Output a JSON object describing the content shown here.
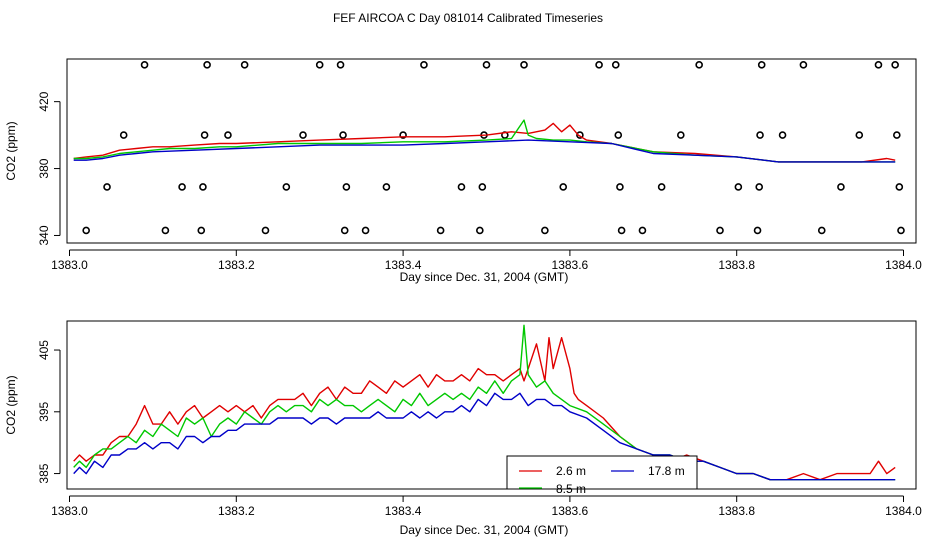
{
  "title": "FEF AIRCOA C  Day 081014  Calibrated Timeseries",
  "colors": {
    "red": "#e00000",
    "green": "#00c800",
    "blue": "#0000c8",
    "axis": "#000000"
  },
  "chart_data": [
    {
      "type": "line",
      "xlabel": "Day since Dec. 31, 2004 (GMT)",
      "ylabel": "CO2 (ppm)",
      "xlim": [
        1382.997,
        1384.015
      ],
      "ylim": [
        335.5,
        445.5
      ],
      "x_ticks": [
        "1383.0",
        "1383.2",
        "1383.4",
        "1383.6",
        "1383.8",
        "1384.0"
      ],
      "y_ticks": [
        "340",
        "380",
        "420"
      ],
      "y_tick_values": [
        340,
        380,
        420
      ],
      "x_tick_values": [
        1383.0,
        1383.2,
        1383.4,
        1383.6,
        1383.8,
        1384.0
      ],
      "series": [
        {
          "name": "2.6 m",
          "color": "red",
          "x": [
            1383.005,
            1383.02,
            1383.04,
            1383.06,
            1383.08,
            1383.1,
            1383.12,
            1383.15,
            1383.18,
            1383.2,
            1383.25,
            1383.3,
            1383.35,
            1383.4,
            1383.45,
            1383.5,
            1383.53,
            1383.55,
            1383.57,
            1383.58,
            1383.59,
            1383.6,
            1383.61,
            1383.62,
            1383.65,
            1383.7,
            1383.75,
            1383.8,
            1383.85,
            1383.9,
            1383.95,
            1383.98,
            1383.99
          ],
          "y": [
            386,
            387,
            388,
            391,
            392,
            393,
            393,
            394,
            395,
            395,
            396,
            397,
            398,
            399,
            399,
            400,
            402,
            401,
            403,
            407,
            402,
            406,
            400,
            397,
            395,
            390,
            389,
            387,
            384,
            384,
            384,
            386,
            385
          ]
        },
        {
          "name": "8.5 m",
          "color": "green",
          "x": [
            1383.005,
            1383.02,
            1383.04,
            1383.06,
            1383.08,
            1383.1,
            1383.12,
            1383.15,
            1383.18,
            1383.2,
            1383.25,
            1383.3,
            1383.35,
            1383.4,
            1383.45,
            1383.5,
            1383.53,
            1383.545,
            1383.55,
            1383.56,
            1383.58,
            1383.6,
            1383.62,
            1383.65,
            1383.7,
            1383.75,
            1383.8,
            1383.85,
            1383.9,
            1383.95,
            1383.99
          ],
          "y": [
            386,
            386,
            387,
            389,
            390,
            391,
            392,
            392,
            393,
            393,
            395,
            395,
            395,
            396,
            396,
            397,
            398,
            409,
            400,
            398,
            397,
            397,
            396,
            395,
            390,
            388,
            387,
            384,
            384,
            384,
            384
          ]
        },
        {
          "name": "17.8 m",
          "color": "blue",
          "x": [
            1383.005,
            1383.02,
            1383.04,
            1383.06,
            1383.08,
            1383.1,
            1383.15,
            1383.2,
            1383.25,
            1383.3,
            1383.35,
            1383.4,
            1383.45,
            1383.5,
            1383.55,
            1383.6,
            1383.65,
            1383.7,
            1383.75,
            1383.8,
            1383.85,
            1383.9,
            1383.95,
            1383.99
          ],
          "y": [
            385,
            385,
            386,
            388,
            389,
            390,
            391,
            392,
            393,
            394,
            394,
            394,
            395,
            396,
            397,
            396,
            395,
            389,
            388,
            387,
            384,
            384,
            384,
            384
          ]
        }
      ],
      "markers": {
        "symbol": "circle",
        "points": [
          [
            1383.02,
            343
          ],
          [
            1383.045,
            369
          ],
          [
            1383.065,
            400
          ],
          [
            1383.09,
            442
          ],
          [
            1383.115,
            343
          ],
          [
            1383.135,
            369
          ],
          [
            1383.158,
            343
          ],
          [
            1383.16,
            369
          ],
          [
            1383.162,
            400
          ],
          [
            1383.165,
            442
          ],
          [
            1383.19,
            400
          ],
          [
            1383.21,
            442
          ],
          [
            1383.235,
            343
          ],
          [
            1383.26,
            369
          ],
          [
            1383.28,
            400
          ],
          [
            1383.3,
            442
          ],
          [
            1383.325,
            442
          ],
          [
            1383.328,
            400
          ],
          [
            1383.33,
            343
          ],
          [
            1383.332,
            369
          ],
          [
            1383.355,
            343
          ],
          [
            1383.38,
            369
          ],
          [
            1383.4,
            400
          ],
          [
            1383.425,
            442
          ],
          [
            1383.445,
            343
          ],
          [
            1383.47,
            369
          ],
          [
            1383.492,
            343
          ],
          [
            1383.495,
            369
          ],
          [
            1383.497,
            400
          ],
          [
            1383.5,
            442
          ],
          [
            1383.522,
            400
          ],
          [
            1383.545,
            442
          ],
          [
            1383.57,
            343
          ],
          [
            1383.592,
            369
          ],
          [
            1383.612,
            400
          ],
          [
            1383.635,
            442
          ],
          [
            1383.655,
            442
          ],
          [
            1383.658,
            400
          ],
          [
            1383.66,
            369
          ],
          [
            1383.662,
            343
          ],
          [
            1383.687,
            343
          ],
          [
            1383.71,
            369
          ],
          [
            1383.733,
            400
          ],
          [
            1383.755,
            442
          ],
          [
            1383.78,
            343
          ],
          [
            1383.802,
            369
          ],
          [
            1383.825,
            343
          ],
          [
            1383.827,
            369
          ],
          [
            1383.828,
            400
          ],
          [
            1383.83,
            442
          ],
          [
            1383.855,
            400
          ],
          [
            1383.88,
            442
          ],
          [
            1383.902,
            343
          ],
          [
            1383.925,
            369
          ],
          [
            1383.947,
            400
          ],
          [
            1383.97,
            442
          ],
          [
            1383.99,
            442
          ],
          [
            1383.992,
            400
          ],
          [
            1383.995,
            369
          ],
          [
            1383.997,
            343
          ]
        ]
      }
    },
    {
      "type": "line",
      "xlabel": "Day since Dec. 31, 2004 (GMT)",
      "ylabel": "CO2 (ppm)",
      "xlim": [
        1382.997,
        1384.015
      ],
      "ylim": [
        382.5,
        409.7
      ],
      "x_ticks": [
        "1383.0",
        "1383.2",
        "1383.4",
        "1383.6",
        "1383.8",
        "1384.0"
      ],
      "y_ticks": [
        "385",
        "395",
        "405"
      ],
      "y_tick_values": [
        385,
        395,
        405
      ],
      "x_tick_values": [
        1383.0,
        1383.2,
        1383.4,
        1383.6,
        1383.8,
        1384.0
      ],
      "series": [
        {
          "name": "2.6 m",
          "color": "red",
          "x": [
            1383.005,
            1383.012,
            1383.02,
            1383.03,
            1383.04,
            1383.05,
            1383.06,
            1383.07,
            1383.08,
            1383.09,
            1383.1,
            1383.11,
            1383.12,
            1383.13,
            1383.14,
            1383.15,
            1383.16,
            1383.17,
            1383.18,
            1383.19,
            1383.2,
            1383.21,
            1383.22,
            1383.23,
            1383.24,
            1383.25,
            1383.26,
            1383.27,
            1383.28,
            1383.29,
            1383.3,
            1383.31,
            1383.32,
            1383.33,
            1383.34,
            1383.35,
            1383.36,
            1383.37,
            1383.38,
            1383.39,
            1383.4,
            1383.41,
            1383.42,
            1383.43,
            1383.44,
            1383.45,
            1383.46,
            1383.47,
            1383.48,
            1383.49,
            1383.5,
            1383.51,
            1383.52,
            1383.53,
            1383.54,
            1383.545,
            1383.55,
            1383.56,
            1383.57,
            1383.575,
            1383.58,
            1383.59,
            1383.6,
            1383.605,
            1383.61,
            1383.62,
            1383.64,
            1383.66,
            1383.68,
            1383.7,
            1383.72,
            1383.74,
            1383.76,
            1383.78,
            1383.8,
            1383.82,
            1383.84,
            1383.86,
            1383.88,
            1383.9,
            1383.92,
            1383.94,
            1383.96,
            1383.97,
            1383.98,
            1383.99
          ],
          "y": [
            387,
            388,
            387,
            388,
            388,
            390,
            391,
            391,
            393,
            396,
            393,
            393,
            395,
            393,
            395,
            396,
            394,
            395,
            396,
            395,
            396,
            395,
            396,
            394,
            396,
            397,
            397,
            397,
            398,
            396,
            398,
            399,
            397,
            399,
            398,
            398,
            400,
            399,
            398,
            400,
            399,
            400,
            401,
            399,
            401,
            400,
            400,
            401,
            400,
            402,
            401,
            401,
            400,
            401,
            402,
            400,
            402,
            406,
            400,
            407,
            402,
            407,
            402,
            398,
            397,
            396,
            394,
            391,
            389,
            388,
            387,
            388,
            387,
            386,
            385,
            385,
            384,
            384,
            385,
            384,
            385,
            385,
            385,
            387,
            385,
            386
          ]
        },
        {
          "name": "8.5 m",
          "color": "green",
          "x": [
            1383.005,
            1383.012,
            1383.02,
            1383.03,
            1383.04,
            1383.05,
            1383.06,
            1383.07,
            1383.08,
            1383.09,
            1383.1,
            1383.11,
            1383.12,
            1383.13,
            1383.14,
            1383.15,
            1383.16,
            1383.17,
            1383.18,
            1383.19,
            1383.2,
            1383.21,
            1383.22,
            1383.23,
            1383.24,
            1383.25,
            1383.26,
            1383.27,
            1383.28,
            1383.29,
            1383.3,
            1383.31,
            1383.32,
            1383.33,
            1383.34,
            1383.35,
            1383.36,
            1383.37,
            1383.38,
            1383.39,
            1383.4,
            1383.41,
            1383.42,
            1383.43,
            1383.44,
            1383.45,
            1383.46,
            1383.47,
            1383.48,
            1383.49,
            1383.5,
            1383.51,
            1383.52,
            1383.53,
            1383.54,
            1383.545,
            1383.55,
            1383.56,
            1383.57,
            1383.58,
            1383.59,
            1383.6,
            1383.62,
            1383.64,
            1383.66,
            1383.68,
            1383.7,
            1383.72,
            1383.74,
            1383.76,
            1383.78,
            1383.8,
            1383.82,
            1383.84,
            1383.86,
            1383.88,
            1383.9,
            1383.92,
            1383.94,
            1383.96,
            1383.98,
            1383.99
          ],
          "y": [
            386,
            387,
            386,
            388,
            389,
            389,
            390,
            391,
            390,
            392,
            391,
            393,
            392,
            391,
            394,
            393,
            394,
            391,
            393,
            394,
            393,
            395,
            394,
            393,
            395,
            396,
            395,
            396,
            396,
            395,
            397,
            396,
            397,
            396,
            396,
            395,
            396,
            397,
            396,
            395,
            397,
            396,
            398,
            396,
            397,
            398,
            397,
            398,
            397,
            399,
            398,
            400,
            398,
            400,
            401,
            409,
            401,
            399,
            400,
            398,
            397,
            396,
            395,
            393,
            391,
            389,
            388,
            388,
            387,
            387,
            386,
            385,
            385,
            384,
            384,
            384,
            384,
            384,
            384,
            384,
            384,
            384
          ]
        },
        {
          "name": "17.8 m",
          "color": "blue",
          "x": [
            1383.005,
            1383.012,
            1383.02,
            1383.03,
            1383.04,
            1383.05,
            1383.06,
            1383.07,
            1383.08,
            1383.09,
            1383.1,
            1383.11,
            1383.12,
            1383.13,
            1383.14,
            1383.15,
            1383.16,
            1383.17,
            1383.18,
            1383.19,
            1383.2,
            1383.21,
            1383.22,
            1383.23,
            1383.24,
            1383.25,
            1383.26,
            1383.27,
            1383.28,
            1383.29,
            1383.3,
            1383.31,
            1383.32,
            1383.33,
            1383.34,
            1383.35,
            1383.36,
            1383.37,
            1383.38,
            1383.39,
            1383.4,
            1383.41,
            1383.42,
            1383.43,
            1383.44,
            1383.45,
            1383.46,
            1383.47,
            1383.48,
            1383.49,
            1383.5,
            1383.51,
            1383.52,
            1383.53,
            1383.54,
            1383.55,
            1383.56,
            1383.57,
            1383.58,
            1383.59,
            1383.6,
            1383.62,
            1383.64,
            1383.66,
            1383.68,
            1383.7,
            1383.72,
            1383.74,
            1383.76,
            1383.78,
            1383.8,
            1383.82,
            1383.84,
            1383.86,
            1383.88,
            1383.9,
            1383.92,
            1383.94,
            1383.96,
            1383.98,
            1383.99
          ],
          "y": [
            385,
            386,
            385,
            387,
            386,
            388,
            388,
            389,
            389,
            390,
            389,
            390,
            390,
            389,
            391,
            391,
            390,
            391,
            391,
            392,
            392,
            393,
            393,
            393,
            393,
            394,
            394,
            394,
            394,
            393,
            394,
            394,
            393,
            394,
            394,
            394,
            394,
            395,
            394,
            394,
            394,
            395,
            394,
            395,
            394,
            395,
            395,
            396,
            395,
            397,
            396,
            398,
            397,
            397,
            398,
            396,
            397,
            397,
            396,
            396,
            395,
            394,
            392,
            390,
            389,
            388,
            388,
            387,
            387,
            386,
            385,
            385,
            384,
            384,
            384,
            384,
            384,
            384,
            384,
            384,
            384
          ]
        }
      ],
      "legend": {
        "placement": "bottom-center",
        "items": [
          {
            "label": "2.6 m",
            "color": "red"
          },
          {
            "label": "17.8 m",
            "color": "blue"
          },
          {
            "label": "8.5 m",
            "color": "green"
          }
        ]
      }
    }
  ]
}
